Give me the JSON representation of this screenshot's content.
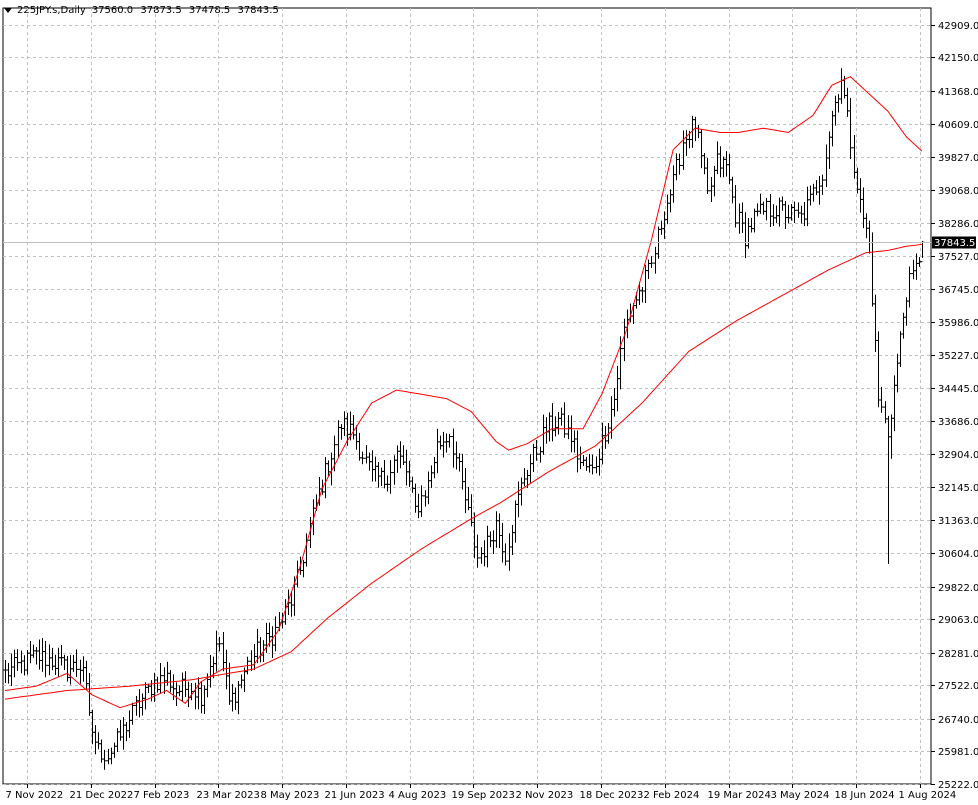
{
  "header": {
    "symbol": "225JPY.s,Daily",
    "open": "37560.0",
    "high": "37873.5",
    "low": "37478.5",
    "close": "37843.5"
  },
  "price_label": "37843.5",
  "colors": {
    "background": "#ffffff",
    "bars": "#000000",
    "grid": "#c0c0c0",
    "ma_fast": "#ff0000",
    "ma_slow": "#ff0000",
    "price_line": "#c0c0c0"
  },
  "chart_data": {
    "type": "ohlc",
    "title": "225JPY.s,Daily",
    "x_labels": [
      "7 Nov 2022",
      "21 Dec 2022",
      "7 Feb 2023",
      "23 Mar 2023",
      "8 May 2023",
      "21 Jun 2023",
      "4 Aug 2023",
      "19 Sep 2023",
      "2 Nov 2023",
      "18 Dec 2023",
      "2 Feb 2024",
      "19 Mar 2024",
      "3 May 2024",
      "18 Jun 2024",
      "1 Aug 2024"
    ],
    "y_ticks": [
      "42909.0",
      "42150.0",
      "41368.0",
      "40609.0",
      "39827.0",
      "39068.0",
      "38286.0",
      "37527.0",
      "36745.0",
      "35986.0",
      "35227.0",
      "34445.0",
      "33686.0",
      "32904.0",
      "32145.0",
      "31363.0",
      "30604.0",
      "29822.0",
      "29063.0",
      "28281.0",
      "27522.0",
      "26740.0",
      "25981.0",
      "25222.0"
    ],
    "ylim": [
      25222,
      43300
    ],
    "grid": true,
    "last_price": 37843.5,
    "close_path": [
      [
        0,
        27800
      ],
      [
        5,
        28000
      ],
      [
        10,
        28200
      ],
      [
        15,
        28100
      ],
      [
        20,
        27900
      ],
      [
        25,
        28000
      ],
      [
        27,
        26700
      ],
      [
        30,
        26000
      ],
      [
        33,
        25900
      ],
      [
        36,
        26200
      ],
      [
        39,
        26600
      ],
      [
        42,
        27000
      ],
      [
        45,
        27300
      ],
      [
        48,
        27600
      ],
      [
        52,
        27700
      ],
      [
        55,
        27400
      ],
      [
        60,
        27500
      ],
      [
        63,
        27300
      ],
      [
        66,
        28000
      ],
      [
        69,
        28500
      ],
      [
        72,
        27100
      ],
      [
        75,
        27500
      ],
      [
        78,
        28000
      ],
      [
        81,
        28300
      ],
      [
        85,
        28600
      ],
      [
        88,
        28900
      ],
      [
        92,
        29500
      ],
      [
        95,
        30200
      ],
      [
        98,
        31200
      ],
      [
        101,
        32000
      ],
      [
        104,
        32700
      ],
      [
        108,
        33600
      ],
      [
        112,
        33400
      ],
      [
        115,
        32900
      ],
      [
        118,
        32400
      ],
      [
        122,
        32300
      ],
      [
        126,
        32900
      ],
      [
        129,
        32500
      ],
      [
        132,
        31600
      ],
      [
        136,
        32200
      ],
      [
        139,
        33100
      ],
      [
        143,
        33400
      ],
      [
        146,
        32500
      ],
      [
        149,
        31500
      ],
      [
        152,
        30500
      ],
      [
        155,
        30800
      ],
      [
        158,
        31300
      ],
      [
        161,
        30600
      ],
      [
        164,
        31600
      ],
      [
        167,
        32400
      ],
      [
        171,
        33000
      ],
      [
        174,
        33500
      ],
      [
        178,
        33700
      ],
      [
        182,
        33300
      ],
      [
        185,
        32700
      ],
      [
        189,
        32500
      ],
      [
        192,
        33200
      ],
      [
        196,
        34200
      ],
      [
        199,
        35800
      ],
      [
        202,
        36400
      ],
      [
        205,
        36800
      ],
      [
        208,
        37300
      ],
      [
        212,
        38600
      ],
      [
        215,
        39200
      ],
      [
        218,
        40200
      ],
      [
        222,
        40600
      ],
      [
        226,
        38900
      ],
      [
        229,
        39700
      ],
      [
        232,
        39600
      ],
      [
        235,
        38500
      ],
      [
        238,
        38000
      ],
      [
        241,
        38400
      ],
      [
        245,
        38600
      ],
      [
        249,
        38600
      ],
      [
        252,
        38500
      ],
      [
        256,
        38400
      ],
      [
        259,
        38800
      ],
      [
        263,
        39500
      ],
      [
        266,
        40800
      ],
      [
        269,
        41700
      ],
      [
        272,
        40200
      ],
      [
        275,
        38700
      ],
      [
        278,
        37800
      ],
      [
        281,
        34200
      ],
      [
        284,
        33400
      ],
      [
        287,
        35000
      ],
      [
        290,
        36700
      ],
      [
        293,
        37200
      ],
      [
        295,
        37843.5
      ]
    ],
    "series": [
      {
        "kind": "line",
        "points": [
          [
            0,
            27400
          ],
          [
            10,
            27500
          ],
          [
            20,
            27800
          ],
          [
            28,
            27300
          ],
          [
            37,
            27000
          ],
          [
            46,
            27200
          ],
          [
            52,
            27400
          ],
          [
            58,
            27100
          ],
          [
            63,
            27600
          ],
          [
            70,
            27900
          ],
          [
            80,
            28000
          ],
          [
            88,
            28800
          ],
          [
            95,
            30300
          ],
          [
            102,
            32100
          ],
          [
            110,
            33200
          ],
          [
            118,
            34100
          ],
          [
            126,
            34400
          ],
          [
            134,
            34300
          ],
          [
            142,
            34200
          ],
          [
            150,
            33900
          ],
          [
            158,
            33200
          ],
          [
            162,
            33000
          ],
          [
            168,
            33150
          ],
          [
            176,
            33500
          ],
          [
            186,
            33500
          ],
          [
            192,
            34300
          ],
          [
            200,
            35800
          ],
          [
            208,
            37900
          ],
          [
            215,
            40000
          ],
          [
            222,
            40500
          ],
          [
            230,
            40400
          ],
          [
            236,
            40400
          ],
          [
            244,
            40500
          ],
          [
            252,
            40400
          ],
          [
            260,
            40800
          ],
          [
            266,
            41500
          ],
          [
            272,
            41700
          ],
          [
            278,
            41300
          ],
          [
            284,
            40900
          ],
          [
            290,
            40300
          ],
          [
            296,
            39900
          ]
        ]
      },
      {
        "kind": "line",
        "points": [
          [
            0,
            27200
          ],
          [
            20,
            27400
          ],
          [
            40,
            27500
          ],
          [
            60,
            27650
          ],
          [
            80,
            27900
          ],
          [
            92,
            28300
          ],
          [
            104,
            29100
          ],
          [
            118,
            29900
          ],
          [
            134,
            30700
          ],
          [
            150,
            31400
          ],
          [
            160,
            31800
          ],
          [
            175,
            32500
          ],
          [
            190,
            33100
          ],
          [
            205,
            34100
          ],
          [
            220,
            35300
          ],
          [
            235,
            36000
          ],
          [
            250,
            36600
          ],
          [
            265,
            37200
          ],
          [
            277,
            37600
          ],
          [
            284,
            37650
          ],
          [
            290,
            37750
          ],
          [
            296,
            37800
          ]
        ]
      }
    ]
  }
}
